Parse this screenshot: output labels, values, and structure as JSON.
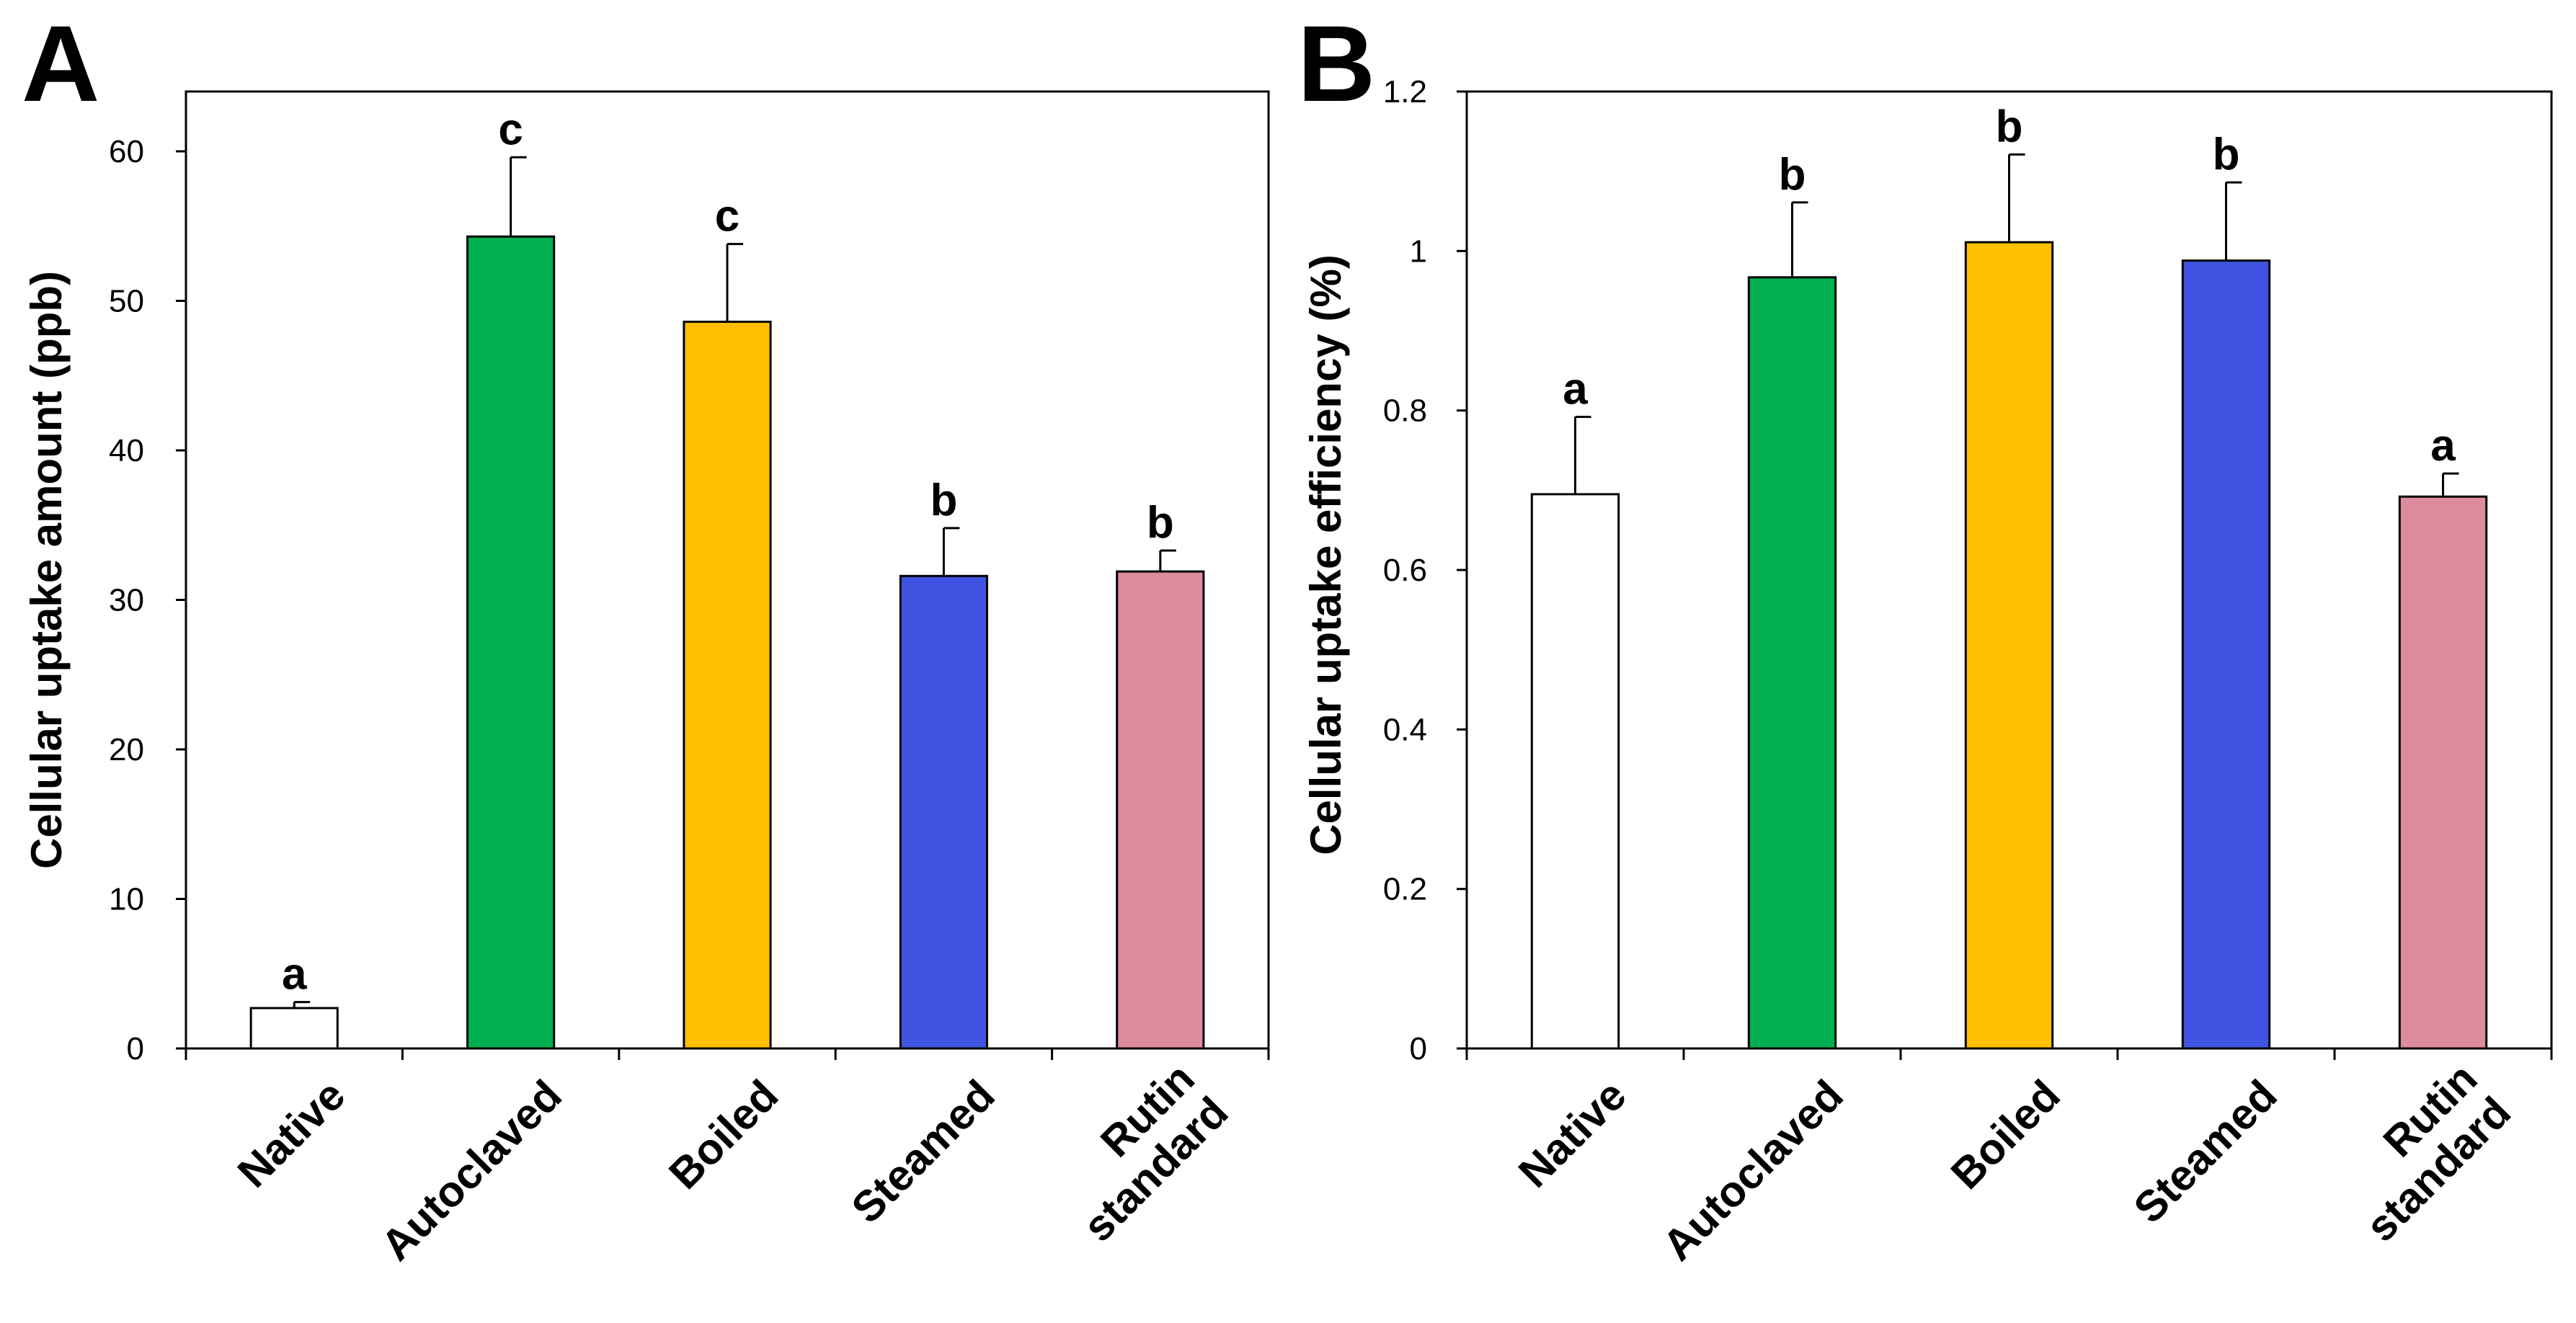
{
  "chart_data": [
    {
      "type": "bar",
      "panel_label": "A",
      "title": "",
      "xlabel": "",
      "ylabel": "Cellular uptake amount (ppb)",
      "ylim": [
        0,
        64
      ],
      "yticks": [
        0,
        10,
        20,
        30,
        40,
        50,
        60
      ],
      "ytick_labels": [
        "0",
        "10",
        "20",
        "30",
        "40",
        "50",
        "60"
      ],
      "grid": false,
      "categories": [
        [
          "Native"
        ],
        [
          "Autoclaved"
        ],
        [
          "Boiled"
        ],
        [
          "Steamed"
        ],
        [
          "Rutin",
          "standard"
        ]
      ],
      "values": [
        2.7,
        54.3,
        48.6,
        31.6,
        31.9
      ],
      "errors": [
        0.4,
        5.3,
        5.2,
        3.2,
        1.4
      ],
      "significance": [
        "a",
        "c",
        "c",
        "b",
        "b"
      ],
      "colors": [
        "#ffffff",
        "#00b050",
        "#ffc000",
        "#3f55e1",
        "#dc8c9d"
      ]
    },
    {
      "type": "bar",
      "panel_label": "B",
      "title": "",
      "xlabel": "",
      "ylabel": "Cellular uptake efficiency (%)",
      "ylim": [
        0,
        1.2
      ],
      "yticks": [
        0,
        0.2,
        0.4,
        0.6,
        0.8,
        1.0,
        1.2
      ],
      "ytick_labels": [
        "0",
        "0.2",
        "0.4",
        "0.6",
        "0.8",
        "1",
        "1.2"
      ],
      "grid": false,
      "categories": [
        [
          "Native"
        ],
        [
          "Autoclaved"
        ],
        [
          "Boiled"
        ],
        [
          "Steamed"
        ],
        [
          "Rutin",
          "standard"
        ]
      ],
      "values": [
        0.695,
        0.967,
        1.011,
        0.988,
        0.692
      ],
      "errors": [
        0.097,
        0.094,
        0.11,
        0.098,
        0.029
      ],
      "significance": [
        "a",
        "b",
        "b",
        "b",
        "a"
      ],
      "colors": [
        "#ffffff",
        "#00b050",
        "#ffc000",
        "#3f55e1",
        "#dc8c9d"
      ]
    }
  ]
}
